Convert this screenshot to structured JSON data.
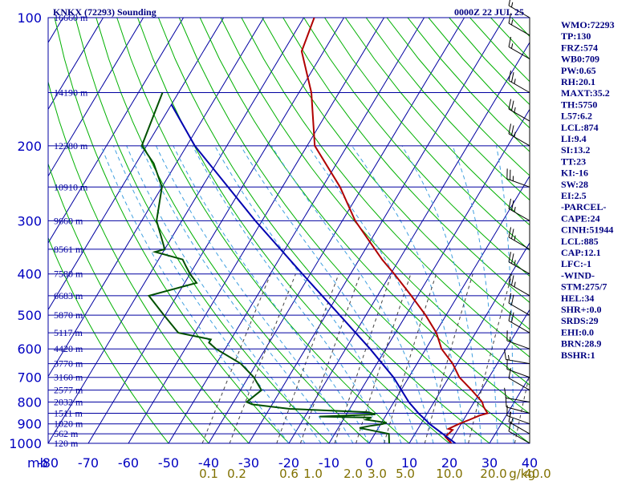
{
  "header": {
    "station": "KNKX (72293) Sounding",
    "time": "0000Z 22 JUL 25",
    "pressure_unit": "mb",
    "mixing_unit": "g/kg"
  },
  "colors": {
    "grid": "#0000a0",
    "dry_adiabat": "#00b000",
    "moist_adiabat": "#40a0e0",
    "mixing_ratio": "#404040",
    "temperature": "#b00000",
    "dewpoint": "#005000",
    "parcel": "#0000b0",
    "wind_barb": "#000000"
  },
  "chart_data": {
    "type": "line",
    "title": "KNKX (72293) Sounding",
    "valid_time": "0000Z 22 JUL 25",
    "xlabel": "",
    "ylabel": "mb",
    "y_scale": "log",
    "skew": true,
    "xlim": [
      -80,
      40
    ],
    "ylim": [
      1000,
      100
    ],
    "grid": true,
    "pressure_ticks": [
      100,
      200,
      300,
      400,
      500,
      600,
      700,
      800,
      900,
      1000
    ],
    "temperature_ticks": [
      -80,
      -70,
      -60,
      -50,
      -40,
      -30,
      -20,
      -10,
      0,
      10,
      20,
      30,
      40
    ],
    "temperature_tick_labels": [
      "-80",
      "-70",
      "-60",
      "-50",
      "-40",
      "-30",
      "-20",
      "-10",
      "0",
      "10",
      "20",
      "30",
      "40"
    ],
    "height_labels": [
      {
        "p": 100,
        "label": "16660 m"
      },
      {
        "p": 150,
        "label": "14190 m"
      },
      {
        "p": 200,
        "label": "12380 m"
      },
      {
        "p": 250,
        "label": "10910 m"
      },
      {
        "p": 300,
        "label": "9660 m"
      },
      {
        "p": 350,
        "label": "8561 m"
      },
      {
        "p": 400,
        "label": "7580 m"
      },
      {
        "p": 450,
        "label": "6683 m"
      },
      {
        "p": 500,
        "label": "5870 m"
      },
      {
        "p": 550,
        "label": "5117 m"
      },
      {
        "p": 600,
        "label": "4420 m"
      },
      {
        "p": 650,
        "label": "3770 m"
      },
      {
        "p": 700,
        "label": "3160 m"
      },
      {
        "p": 750,
        "label": "2577 m"
      },
      {
        "p": 800,
        "label": "2032 m"
      },
      {
        "p": 850,
        "label": "1511 m"
      },
      {
        "p": 900,
        "label": "1020 m"
      },
      {
        "p": 950,
        "label": "562 m"
      },
      {
        "p": 1000,
        "label": "120 m"
      }
    ],
    "mixing_ratio_lines": [
      0.1,
      0.2,
      0.6,
      1.0,
      2.0,
      3.0,
      5.0,
      10.0,
      20.0,
      40.0
    ],
    "mixing_ratio_labels": [
      {
        "label": "0.1",
        "t": -40
      },
      {
        "label": "0.2",
        "t": -33
      },
      {
        "label": "0.6",
        "t": -20
      },
      {
        "label": "1.0",
        "t": -14
      },
      {
        "label": "2.0",
        "t": -4
      },
      {
        "label": "3.0",
        "t": 2
      },
      {
        "label": "5.0",
        "t": 9
      },
      {
        "label": "10.0",
        "t": 20
      },
      {
        "label": "20.0",
        "t": 31
      },
      {
        "label": "40.0",
        "t": 42
      }
    ],
    "series": [
      {
        "name": "Temperature",
        "color": "#b00000",
        "points": [
          [
            1000,
            20.5
          ],
          [
            965,
            18.0
          ],
          [
            930,
            18.8
          ],
          [
            925,
            17.6
          ],
          [
            900,
            19.5
          ],
          [
            880,
            21.5
          ],
          [
            860,
            23.4
          ],
          [
            850,
            25.0
          ],
          [
            835,
            24.0
          ],
          [
            820,
            23.0
          ],
          [
            800,
            22.0
          ],
          [
            750,
            17.6
          ],
          [
            700,
            12.6
          ],
          [
            650,
            8.9
          ],
          [
            600,
            3.9
          ],
          [
            575,
            2.1
          ],
          [
            550,
            0.2
          ],
          [
            500,
            -5.1
          ],
          [
            450,
            -11.6
          ],
          [
            400,
            -19.1
          ],
          [
            370,
            -24.3
          ],
          [
            350,
            -27.6
          ],
          [
            300,
            -36.8
          ],
          [
            250,
            -45.6
          ],
          [
            200,
            -58.1
          ],
          [
            150,
            -66.9
          ],
          [
            120,
            -75.5
          ],
          [
            100,
            -77.4
          ]
        ]
      },
      {
        "name": "Dewpoint",
        "color": "#005000",
        "points": [
          [
            1000,
            5.0
          ],
          [
            950,
            3.5
          ],
          [
            920,
            -4.7
          ],
          [
            910,
            -2.4
          ],
          [
            902,
            0.3
          ],
          [
            895,
            1.3
          ],
          [
            880,
            -4.3
          ],
          [
            870,
            -3.3
          ],
          [
            865,
            -16.4
          ],
          [
            855,
            -2.8
          ],
          [
            845,
            -4.7
          ],
          [
            830,
            -25.0
          ],
          [
            810,
            -35.0
          ],
          [
            800,
            -36.7
          ],
          [
            750,
            -34.8
          ],
          [
            700,
            -38.6
          ],
          [
            650,
            -43.9
          ],
          [
            600,
            -52.3
          ],
          [
            580,
            -55.0
          ],
          [
            570,
            -55.0
          ],
          [
            550,
            -64.1
          ],
          [
            500,
            -70.3
          ],
          [
            450,
            -77.0
          ],
          [
            420,
            -67.0
          ],
          [
            400,
            -70.0
          ],
          [
            385,
            -72.0
          ],
          [
            370,
            -74.0
          ],
          [
            355,
            -82.0
          ],
          [
            350,
            -80.0
          ],
          [
            300,
            -86.3
          ],
          [
            250,
            -90.0
          ],
          [
            220,
            -95.6
          ],
          [
            200,
            -101.2
          ],
          [
            150,
            -104.0
          ]
        ]
      },
      {
        "name": "Parcel",
        "color": "#0000b0",
        "points": [
          [
            1000,
            21.5
          ],
          [
            900,
            12.1
          ],
          [
            885,
            10.9
          ],
          [
            850,
            7.8
          ],
          [
            800,
            3.7
          ],
          [
            700,
            -3.8
          ],
          [
            600,
            -13.9
          ],
          [
            500,
            -26.5
          ],
          [
            400,
            -42.0
          ],
          [
            300,
            -61.7
          ],
          [
            200,
            -88.0
          ],
          [
            160,
            -100.0
          ]
        ]
      }
    ],
    "wind_barbs": [
      {
        "p": 1000,
        "dir": 300,
        "spd": 10
      },
      {
        "p": 950,
        "dir": 300,
        "spd": 15
      },
      {
        "p": 900,
        "dir": 290,
        "spd": 15
      },
      {
        "p": 850,
        "dir": 285,
        "spd": 10
      },
      {
        "p": 800,
        "dir": 280,
        "spd": 10
      },
      {
        "p": 750,
        "dir": 300,
        "spd": 10
      },
      {
        "p": 700,
        "dir": 290,
        "spd": 10
      },
      {
        "p": 650,
        "dir": 280,
        "spd": 15
      },
      {
        "p": 600,
        "dir": 290,
        "spd": 15
      },
      {
        "p": 550,
        "dir": 300,
        "spd": 20
      },
      {
        "p": 500,
        "dir": 300,
        "spd": 20
      },
      {
        "p": 450,
        "dir": 300,
        "spd": 25
      },
      {
        "p": 400,
        "dir": 300,
        "spd": 25
      },
      {
        "p": 350,
        "dir": 300,
        "spd": 25
      },
      {
        "p": 300,
        "dir": 300,
        "spd": 25
      },
      {
        "p": 250,
        "dir": 290,
        "spd": 25
      },
      {
        "p": 200,
        "dir": 300,
        "spd": 25
      },
      {
        "p": 175,
        "dir": 300,
        "spd": 25
      },
      {
        "p": 150,
        "dir": 300,
        "spd": 25
      },
      {
        "p": 125,
        "dir": 300,
        "spd": 15
      },
      {
        "p": 110,
        "dir": 300,
        "spd": 15
      },
      {
        "p": 100,
        "dir": 300,
        "spd": 15
      }
    ]
  },
  "indices": [
    "WMO:72293",
    "TP:130",
    "FRZ:574",
    "WB0:709",
    "PW:0.65",
    "RH:20.1",
    "MAXT:35.2",
    "TH:5750",
    "L57:6.2",
    "LCL:874",
    "LI:9.4",
    "SI:13.2",
    "TT:23",
    "KI:-16",
    "SW:28",
    "EI:2.5",
    "-PARCEL-",
    "CAPE:24",
    "CINH:51944",
    "LCL:885",
    "CAP:12.1",
    "LFC:-1",
    "-WIND-",
    "STM:275/7",
    "HEL:34",
    "SHR+:0.0",
    "SRDS:29",
    "EHI:0.0",
    "BRN:28.9",
    "BSHR:1"
  ]
}
